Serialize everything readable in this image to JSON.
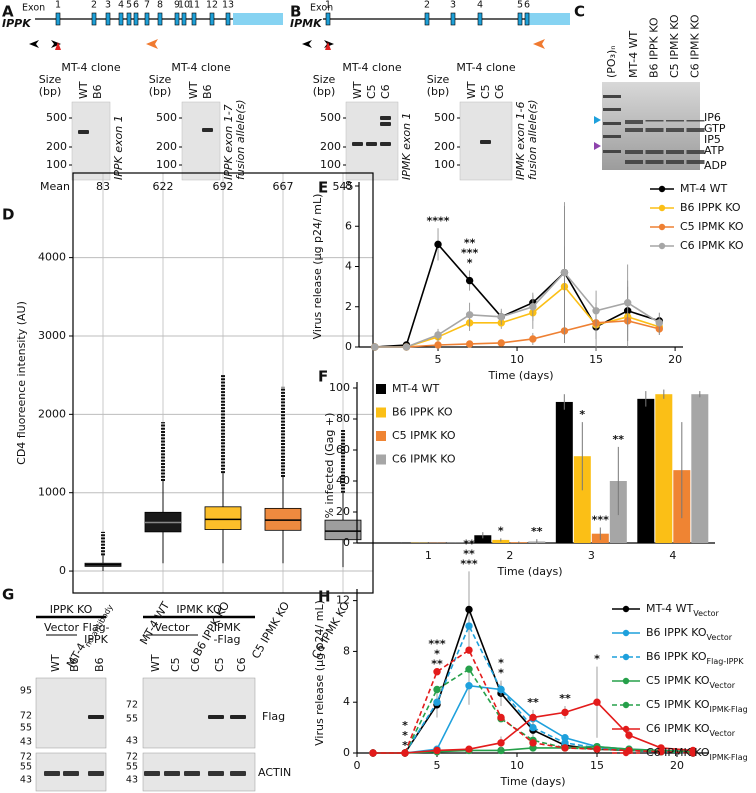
{
  "panel_a": {
    "letter": "A",
    "exon_label": "Exon",
    "gene": "IPPK",
    "exons": [
      "1",
      "2",
      "3",
      "4",
      "5",
      "6",
      "7",
      "8",
      "9",
      "10",
      "11",
      "12",
      "13"
    ],
    "gels": [
      {
        "title": "MT-4 clone",
        "size_label": "Size",
        "size_unit": "(bp)",
        "lanes": [
          "WT",
          "B6"
        ],
        "markers": [
          500,
          200,
          100
        ],
        "caption": [
          "IPPK exon 1"
        ]
      },
      {
        "title": "MT-4 clone",
        "size_label": "Size",
        "size_unit": "(bp)",
        "lanes": [
          "WT",
          "B6"
        ],
        "markers": [
          500,
          200,
          100
        ],
        "caption": [
          "IPPK exon 1-7",
          "fusion allele(s)"
        ]
      }
    ]
  },
  "panel_b": {
    "letter": "B",
    "exon_label": "Exon",
    "gene": "IPMK",
    "exons": [
      "1",
      "2",
      "3",
      "4",
      "5",
      "6"
    ],
    "gels": [
      {
        "title": "MT-4 clone",
        "size_label": "Size",
        "size_unit": "(bp)",
        "lanes": [
          "WT",
          "C5",
          "C6"
        ],
        "markers": [
          500,
          200,
          100
        ],
        "caption": [
          "IPMK exon 1"
        ]
      },
      {
        "title": "MT-4 clone",
        "size_label": "Size",
        "size_unit": "(bp)",
        "lanes": [
          "WT",
          "C5",
          "C6"
        ],
        "markers": [
          500,
          200,
          100
        ],
        "caption": [
          "IPMK exon 1-6",
          "fusion allele(s)"
        ]
      }
    ]
  },
  "panel_c": {
    "letter": "C",
    "marker_lane": "(PO₃)ₙ",
    "lanes": [
      "MT-4 WT",
      "B6 IPPK KO",
      "C5 IPMK KO",
      "C6 IPMK KO"
    ],
    "labels": [
      {
        "text": "IP6",
        "color": "#1ea0dc"
      },
      {
        "text": "GTP",
        "color": "#222222"
      },
      {
        "text": "IP5",
        "color": "#8e44ad"
      },
      {
        "text": "ATP",
        "color": "#222222"
      },
      {
        "text": "ADP",
        "color": "#222222"
      }
    ]
  },
  "panel_g": {
    "letter": "G",
    "groups": [
      {
        "title": "IPPK KO",
        "vector": "Vector",
        "rescue": [
          "Flag-",
          "IPPK"
        ],
        "lanes": [
          "WT",
          "B6",
          "B6"
        ],
        "markers_top": [
          95,
          72,
          55,
          43
        ],
        "markers_bottom": [
          72,
          55,
          43
        ]
      },
      {
        "title": "IPMK KO",
        "vector": "Vector",
        "rescue": [
          "IPMK",
          "-Flag"
        ],
        "lanes": [
          "WT",
          "C5",
          "C6",
          "C5",
          "C6"
        ],
        "markers_top": [
          72,
          55,
          43
        ],
        "markers_bottom": [
          72,
          55,
          43
        ]
      }
    ],
    "blot_labels": [
      "Flag",
      "ACTIN"
    ]
  },
  "chart_data": [
    {
      "type": "box",
      "panel_label": "D",
      "y_label": "CD4 fluoreence intensity (AU)",
      "categories": [
        "MT-4",
        "MT-4 WT",
        "B6 IPPK KO",
        "C5 IPMK KO",
        "C6 IPMK KO"
      ],
      "first_category_subscript": "no antibody",
      "mean_label": "Mean",
      "means": [
        83,
        622,
        692,
        667,
        545
      ],
      "q1": [
        60,
        500,
        530,
        520,
        400
      ],
      "median": [
        80,
        620,
        660,
        650,
        510
      ],
      "q3": [
        100,
        750,
        820,
        800,
        650
      ],
      "whisker_low": [
        0,
        100,
        100,
        100,
        50
      ],
      "whisker_high": [
        200,
        1150,
        1250,
        1200,
        1000
      ],
      "outlier_high": [
        500,
        1900,
        2500,
        2350,
        1800
      ],
      "colors": [
        "#555555",
        "#1a1a1a",
        "#fcbf2a",
        "#ee8a3f",
        "#9e9e9e"
      ],
      "ylim": [
        -280,
        5080
      ],
      "yticks": [
        0,
        1000,
        2000,
        3000,
        4000
      ],
      "grid": true
    },
    {
      "type": "line",
      "panel_label": "E",
      "x_label": "Time (days)",
      "y_label": "Virus release (µg p24/ mL)",
      "x": [
        1,
        3,
        5,
        7,
        9,
        11,
        13,
        15,
        17,
        19
      ],
      "xlim": [
        0,
        20.5
      ],
      "xticks": [
        5,
        10,
        15,
        20
      ],
      "ylim": [
        0,
        8
      ],
      "yticks": [
        0,
        2,
        4,
        6,
        8
      ],
      "series": [
        {
          "name": "MT-4 WT",
          "color": "#000000",
          "values": [
            0,
            0.1,
            5.1,
            3.3,
            1.5,
            2.2,
            3.7,
            1.0,
            1.8,
            1.3
          ],
          "errors": [
            0.05,
            0.1,
            0.8,
            0.5,
            0.3,
            0.4,
            3.3,
            1.2,
            1.5,
            0.4
          ],
          "significance": [
            null,
            null,
            "****",
            null,
            null,
            null,
            null,
            null,
            null,
            null
          ]
        },
        {
          "name": "B6 IPPK KO",
          "color": "#fbbf16",
          "values": [
            0,
            0,
            0.5,
            1.2,
            1.2,
            1.7,
            3.0,
            1.1,
            1.5,
            1.0
          ],
          "errors": [
            0,
            0.05,
            0.3,
            0.4,
            0.3,
            0.8,
            2.0,
            0.7,
            1.5,
            0.4
          ],
          "significance": [
            null,
            null,
            null,
            "**",
            null,
            null,
            null,
            null,
            null,
            null
          ]
        },
        {
          "name": "C5 IPMK KO",
          "color": "#ee8033",
          "values": [
            0,
            0,
            0.1,
            0.15,
            0.2,
            0.4,
            0.8,
            1.2,
            1.3,
            0.9
          ],
          "errors": [
            0,
            0,
            0.05,
            0.1,
            0.1,
            0.3,
            0.6,
            0.4,
            0.3,
            0.3
          ],
          "significance": [
            null,
            null,
            null,
            "***",
            null,
            null,
            null,
            null,
            null,
            null
          ]
        },
        {
          "name": "C6 IPMK KO",
          "color": "#a6a6a6",
          "values": [
            0,
            0,
            0.6,
            1.6,
            1.5,
            2.0,
            3.7,
            1.8,
            2.2,
            1.2
          ],
          "errors": [
            0,
            0,
            0.3,
            0.6,
            0.4,
            0.7,
            3.5,
            1.0,
            1.9,
            0.5
          ],
          "significance": [
            null,
            null,
            null,
            "*",
            null,
            null,
            null,
            null,
            null,
            null
          ]
        }
      ]
    },
    {
      "type": "bar",
      "panel_label": "F",
      "x_label": "Time (days)",
      "y_label": "% infected (Gag +)",
      "categories": [
        "1",
        "2",
        "3",
        "4"
      ],
      "ylim": [
        0,
        100
      ],
      "yticks": [
        0,
        20,
        40,
        60,
        80,
        100
      ],
      "series": [
        {
          "name": "MT-4 WT",
          "color": "#000000",
          "values": [
            0.3,
            5,
            91,
            93
          ],
          "errors": [
            0.1,
            2,
            5,
            5
          ],
          "significance": [
            null,
            null,
            null,
            null
          ]
        },
        {
          "name": "B6 IPPK KO",
          "color": "#fbbf16",
          "values": [
            0.2,
            2,
            56,
            96
          ],
          "errors": [
            0.1,
            1,
            22,
            3
          ],
          "significance": [
            null,
            "*",
            "*",
            null
          ]
        },
        {
          "name": "C5 IPMK KO",
          "color": "#ef8433",
          "values": [
            0.2,
            0.5,
            6,
            47
          ],
          "errors": [
            0.1,
            0.5,
            4,
            31
          ],
          "significance": [
            null,
            null,
            "***",
            null
          ]
        },
        {
          "name": "C6 IPMK KO",
          "color": "#a6a6a6",
          "values": [
            0.2,
            1,
            40,
            96
          ],
          "errors": [
            0.1,
            1.5,
            22,
            2
          ],
          "significance": [
            null,
            "**",
            "**",
            null
          ]
        }
      ]
    },
    {
      "type": "line",
      "panel_label": "H",
      "x_label": "Time (days)",
      "y_label": "Virus release (µg p24/ mL)",
      "x": [
        1,
        3,
        5,
        7,
        9,
        11,
        13,
        15,
        17,
        19,
        21
      ],
      "xlim": [
        0,
        22
      ],
      "xticks": [
        0,
        5,
        10,
        15,
        20
      ],
      "ylim": [
        0,
        12.6
      ],
      "yticks": [
        0,
        4,
        8,
        12
      ],
      "series": [
        {
          "name": "MT-4 WT",
          "subscript": "Vector",
          "color": "#000000",
          "dashed": false,
          "values": [
            0,
            0,
            3.8,
            11.3,
            4.7,
            1.8,
            0.6,
            0.3,
            0.2,
            0.1,
            0
          ],
          "errors": [
            0,
            0,
            1,
            3,
            1,
            0.5,
            0.3,
            0.2,
            0.2,
            0.1,
            0
          ]
        },
        {
          "name": "B6 IPPK KO",
          "subscript": "Vector",
          "color": "#1ea0dc",
          "dashed": false,
          "values": [
            0,
            0,
            0.3,
            5.3,
            5.0,
            2.7,
            1.2,
            0.5,
            0.3,
            0.2,
            0.1
          ],
          "errors": [
            0,
            0,
            0.2,
            1.5,
            0.5,
            0.5,
            0.3,
            0.2,
            0.1,
            0.1,
            0
          ]
        },
        {
          "name": "B6 IPPK KO",
          "subscript": "Flag-IPPK",
          "color": "#1ea0dc",
          "dashed": true,
          "values": [
            0,
            0,
            4.0,
            10.0,
            5.0,
            2.0,
            0.8,
            0.4,
            0.2,
            0.1,
            0
          ],
          "significance": [
            null,
            "*",
            "***",
            "**",
            null,
            null,
            null,
            null,
            null,
            null,
            null
          ]
        },
        {
          "name": "C5 IPMK KO",
          "subscript": "Vector",
          "color": "#26a04a",
          "dashed": false,
          "values": [
            0,
            0,
            0.1,
            0.2,
            0.2,
            0.4,
            0.4,
            0.5,
            0.3,
            0.2,
            0.1
          ]
        },
        {
          "name": "C5 IPMK KO",
          "subscript": "IPMK-Flag",
          "color": "#26a04a",
          "dashed": true,
          "values": [
            0,
            0,
            5.0,
            6.6,
            2.7,
            1.0,
            0.4,
            0.3,
            0.2,
            0.1,
            0
          ],
          "significance": [
            null,
            "*",
            "*",
            "**",
            "*",
            "**",
            "**",
            "*",
            null,
            null,
            null
          ]
        },
        {
          "name": "C6 IPMK KO",
          "subscript": "Vector",
          "color": "#e31b1b",
          "dashed": false,
          "values": [
            0,
            0,
            0.2,
            0.3,
            0.8,
            2.8,
            3.2,
            4.0,
            1.4,
            0.4,
            0.2
          ],
          "errors": [
            0,
            0,
            0.1,
            0.2,
            0.5,
            0.6,
            0.5,
            2.8,
            0.4,
            0.2,
            0.1
          ]
        },
        {
          "name": "C6 IPMK KO",
          "subscript": "IPMK-Flag",
          "color": "#e31b1b",
          "dashed": true,
          "values": [
            0,
            0,
            6.4,
            8.1,
            2.8,
            0.8,
            0.4,
            0.3,
            0.2,
            0.1,
            0
          ],
          "significance": [
            null,
            "*",
            "**",
            "***",
            "*",
            null,
            null,
            null,
            null,
            null,
            null
          ]
        }
      ]
    }
  ]
}
